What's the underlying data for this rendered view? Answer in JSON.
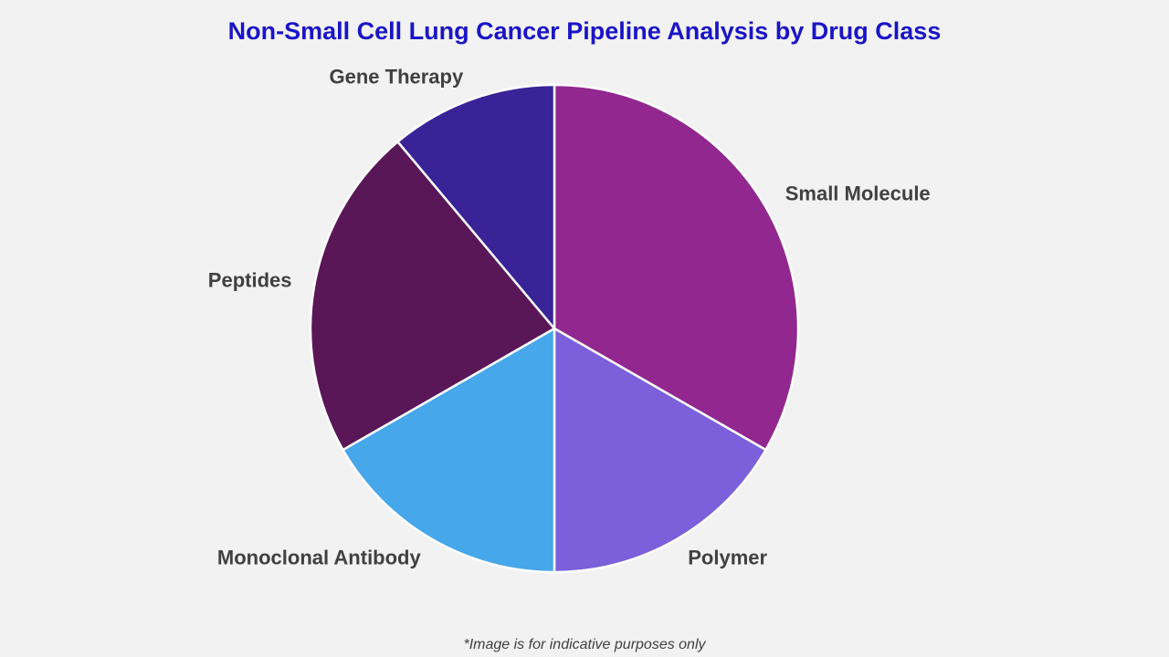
{
  "chart_data": {
    "type": "pie",
    "title": "Non-Small Cell Lung Cancer Pipeline Analysis by Drug Class",
    "categories": [
      "Small Molecule",
      "Polymer",
      "Monoclonal Antibody",
      "Peptides",
      "Gene Therapy"
    ],
    "values": [
      33.3,
      16.7,
      16.7,
      22.2,
      11.1
    ],
    "colors": [
      "#92278f",
      "#7b5fdb",
      "#46a7ea",
      "#5a1758",
      "#3a2397"
    ],
    "footnote": "*Image is for indicative purposes only"
  }
}
